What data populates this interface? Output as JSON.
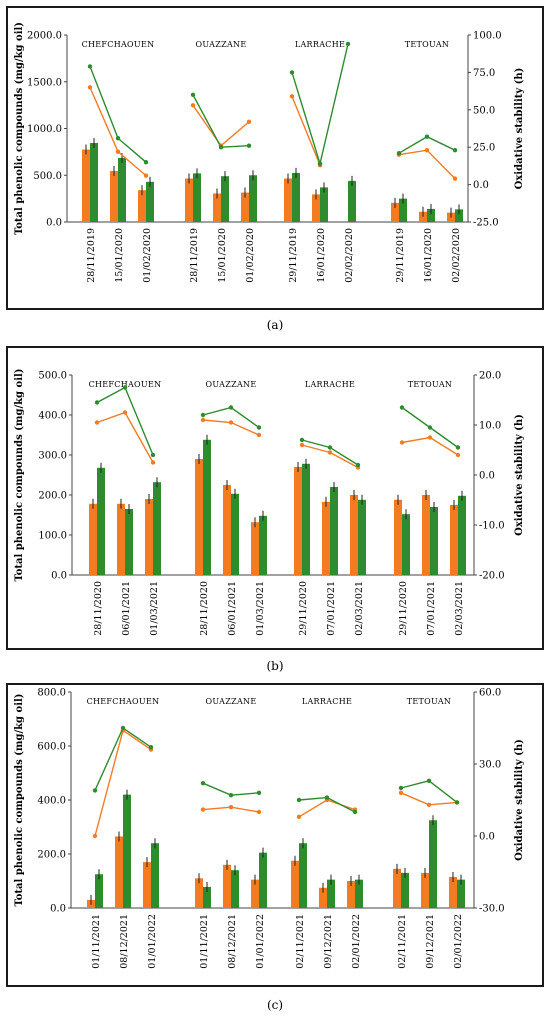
{
  "chart_data": [
    {
      "type": "bar",
      "panel_label": "(a)",
      "ylabel": "Total phenolic compounds (mg/kg oil)",
      "y2label": "Oxidative stability (h)",
      "ylim": [
        0,
        2000
      ],
      "yticks": [
        "0.0",
        "500.0",
        "1000.0",
        "1500.0",
        "2000.0"
      ],
      "y2lim": [
        -25,
        100
      ],
      "y2ticks": [
        "-25.0",
        "0.0",
        "25.0",
        "50.0",
        "75.0",
        "100.0"
      ],
      "groups": [
        {
          "name": "CHEFCHAOUEN",
          "dates": [
            "28/11/2019",
            "15/01/2020",
            "01/02/2020"
          ],
          "orange_bars": [
            775,
            545,
            340
          ],
          "green_bars": [
            845,
            685,
            430
          ],
          "orange_line": [
            65,
            22,
            6
          ],
          "green_line": [
            79,
            31,
            15
          ]
        },
        {
          "name": "OUAZZANE",
          "dates": [
            "28/11/2019",
            "15/01/2020",
            "01/02/2020"
          ],
          "orange_bars": [
            465,
            305,
            315
          ],
          "green_bars": [
            520,
            490,
            500
          ],
          "orange_line": [
            53,
            26,
            42
          ],
          "green_line": [
            60,
            25,
            26
          ]
        },
        {
          "name": "LARRACHE",
          "dates": [
            "29/11/2019",
            "16/01/2020",
            "02/02/2020"
          ],
          "orange_bars": [
            465,
            295,
            null
          ],
          "green_bars": [
            525,
            370,
            440
          ],
          "orange_line": [
            59,
            13,
            null
          ],
          "green_line": [
            75,
            14,
            94
          ]
        },
        {
          "name": "TETOUAN",
          "dates": [
            "29/11/2019",
            "16/01/2020",
            "02/02/2020"
          ],
          "orange_bars": [
            205,
            110,
            100
          ],
          "green_bars": [
            250,
            140,
            135
          ],
          "orange_line": [
            20,
            23,
            4
          ],
          "green_line": [
            21,
            32,
            23
          ]
        }
      ]
    },
    {
      "type": "bar",
      "panel_label": "(b)",
      "ylabel": "Total phenolic compounds (mg/kg oil)",
      "y2label": "Oxidative stability (h)",
      "ylim": [
        0,
        500
      ],
      "yticks": [
        "0.0",
        "100.0",
        "200.0",
        "300.0",
        "400.0",
        "500.0"
      ],
      "y2lim": [
        -20,
        20
      ],
      "y2ticks": [
        "-20.0",
        "-10.0",
        "0.0",
        "10.0",
        "20.0"
      ],
      "groups": [
        {
          "name": "CHEFCHAOUEN",
          "dates": [
            "28/11/2020",
            "06/01/2021",
            "01/03/2021"
          ],
          "orange_bars": [
            178,
            178,
            190
          ],
          "green_bars": [
            268,
            165,
            232
          ],
          "orange_line": [
            10.5,
            12.5,
            2.5
          ],
          "green_line": [
            14.5,
            17.5,
            4
          ]
        },
        {
          "name": "OUAZZANE",
          "dates": [
            "28/11/2020",
            "06/01/2021",
            "01/03/2021"
          ],
          "orange_bars": [
            290,
            225,
            132
          ],
          "green_bars": [
            338,
            203,
            148
          ],
          "orange_line": [
            11,
            10.5,
            8
          ],
          "green_line": [
            12,
            13.5,
            9.5
          ]
        },
        {
          "name": "LARRACHE",
          "dates": [
            "29/11/2020",
            "07/01/2021",
            "02/03/2021"
          ],
          "orange_bars": [
            270,
            183,
            200
          ],
          "green_bars": [
            278,
            220,
            188
          ],
          "orange_line": [
            6,
            4.5,
            1.5
          ],
          "green_line": [
            7,
            5.5,
            2
          ]
        },
        {
          "name": "TETOUAN",
          "dates": [
            "29/11/2020",
            "07/01/2021",
            "02/03/2021"
          ],
          "orange_bars": [
            188,
            200,
            175
          ],
          "green_bars": [
            152,
            170,
            198
          ],
          "orange_line": [
            6.5,
            7.5,
            4
          ],
          "green_line": [
            13.5,
            9.5,
            5.5
          ]
        }
      ]
    },
    {
      "type": "bar",
      "panel_label": "(c)",
      "ylabel": "Total phenolic compounds (mg/kg oil)",
      "y2label": "Oxidative stability (h)",
      "ylim": [
        0,
        800
      ],
      "yticks": [
        "0.0",
        "200.0",
        "400.0",
        "600.0",
        "800.0"
      ],
      "y2lim": [
        -30,
        60
      ],
      "y2ticks": [
        "-30.0",
        "0.0",
        "30.0",
        "60.0"
      ],
      "groups": [
        {
          "name": "CHEFCHAOUEN",
          "dates": [
            "01/11/2021",
            "08/12/2021",
            "01/01/2022"
          ],
          "orange_bars": [
            30,
            265,
            170
          ],
          "green_bars": [
            125,
            420,
            240
          ],
          "orange_line": [
            0,
            44,
            36
          ],
          "green_line": [
            19,
            45,
            37
          ]
        },
        {
          "name": "OUAZZANE",
          "dates": [
            "01/11/2021",
            "08/12/2021",
            "01/01/2022"
          ],
          "orange_bars": [
            110,
            160,
            105
          ],
          "green_bars": [
            78,
            140,
            205
          ],
          "orange_line": [
            11,
            12,
            10
          ],
          "green_line": [
            22,
            17,
            18
          ]
        },
        {
          "name": "LARRACHE",
          "dates": [
            "02/11/2021",
            "09/12/2021",
            "02/01/2022"
          ],
          "orange_bars": [
            175,
            75,
            100
          ],
          "green_bars": [
            240,
            105,
            105
          ],
          "orange_line": [
            8,
            15,
            11
          ],
          "green_line": [
            15,
            16,
            10
          ]
        },
        {
          "name": "TETOUAN",
          "dates": [
            "02/11/2021",
            "09/12/2021",
            "02/01/2022"
          ],
          "orange_bars": [
            145,
            130,
            115
          ],
          "green_bars": [
            130,
            325,
            105
          ],
          "orange_line": [
            18,
            13,
            14
          ],
          "green_line": [
            20,
            23,
            14
          ]
        }
      ]
    }
  ],
  "colors": {
    "orange": "#F47B20",
    "green": "#2E8B2E"
  }
}
